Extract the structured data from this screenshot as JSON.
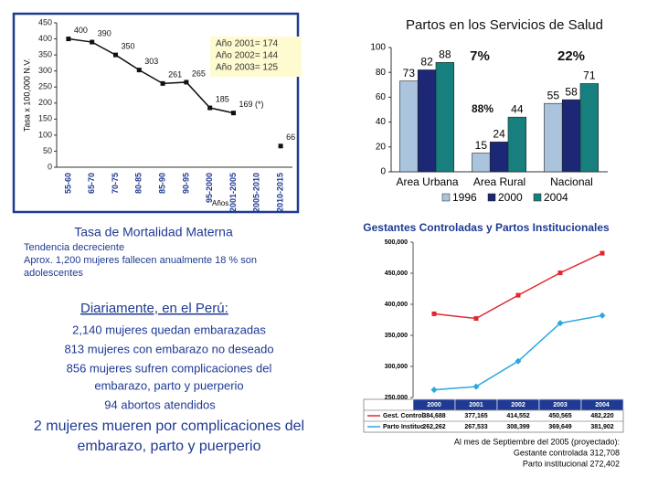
{
  "chart_data": [
    {
      "type": "line",
      "title": "Tasa de Mortalidad Materna",
      "y_label": "Tasa x 100,000 N.V.",
      "x_label": "Años",
      "categories": [
        "55-60",
        "65-70",
        "70-75",
        "80-85",
        "85-90",
        "90-95",
        "95-2000",
        "2001-2005",
        "2005-2010",
        "2010-2015"
      ],
      "values": [
        400,
        390,
        350,
        303,
        261,
        265,
        185,
        169,
        null,
        66
      ],
      "value_labels": [
        "400",
        "390",
        "350",
        "303",
        "261",
        "265",
        "185",
        "169 (*)",
        null,
        "66"
      ],
      "color": "#111111",
      "ylim": [
        0,
        450
      ],
      "yticks": [
        0,
        50,
        100,
        150,
        200,
        250,
        300,
        350,
        400,
        450
      ],
      "annotations": [
        "Año 2001= 174",
        "Año 2002= 144",
        "Año 2003= 125"
      ]
    },
    {
      "type": "bar",
      "title": "Partos en los Servicios de Salud",
      "categories": [
        "Area Urbana",
        "Area Rural",
        "Nacional"
      ],
      "series": [
        {
          "name": "1996",
          "color": "#a9c4dc",
          "values": [
            73,
            15,
            55
          ]
        },
        {
          "name": "2000",
          "color": "#1c2775",
          "values": [
            82,
            24,
            58
          ]
        },
        {
          "name": "2004",
          "color": "#17807e",
          "values": [
            88,
            44,
            71
          ]
        }
      ],
      "ylim": [
        0,
        100
      ],
      "yticks": [
        0,
        20,
        40,
        60,
        80,
        100
      ],
      "annotations": [
        "7%",
        "88%",
        "22%"
      ]
    },
    {
      "type": "line",
      "title": "Gestantes Controladas  y Partos Institucionales",
      "categories": [
        "2000",
        "2001",
        "2002",
        "2003",
        "2004"
      ],
      "series": [
        {
          "name": "Gest. Control.",
          "color": "#e0282e",
          "values": [
            384688,
            377165,
            414552,
            450565,
            482220
          ],
          "value_labels": [
            "384,688",
            "377,165",
            "414,552",
            "450,565",
            "482,220"
          ]
        },
        {
          "name": "Parto Instituc.",
          "color": "#2aa7e0",
          "values": [
            262262,
            267533,
            308399,
            369649,
            381902
          ],
          "value_labels": [
            "262,262",
            "267,533",
            "308,399",
            "369,649",
            "381,902"
          ]
        }
      ],
      "ylim": [
        250000,
        500000
      ],
      "yticks": [
        {
          "value": 250000,
          "label": "250,000"
        },
        {
          "value": 300000,
          "label": "300,000"
        },
        {
          "value": 350000,
          "label": "350,000"
        },
        {
          "value": 400000,
          "label": "400,000"
        },
        {
          "value": 450000,
          "label": "450,000"
        },
        {
          "value": 500000,
          "label": "500,000"
        }
      ],
      "notes": [
        "Al mes de Septiembre del 2005 (proyectado):",
        "Gestante controlada 312,708",
        "Parto institucional 272,402"
      ]
    }
  ],
  "text": {
    "trend": [
      "Tendencia decreciente",
      "Aprox. 1,200 mujeres fallecen anualmente 18 % son",
      "adolescentes"
    ],
    "heading": "Diariamente, en el Perú:",
    "lines": [
      "2,140 mujeres quedan embarazadas",
      "813  mujeres con embarazo no deseado",
      "856  mujeres sufren complicaciones del",
      "embarazo, parto y puerperio",
      "94  abortos atendidos"
    ],
    "big": [
      "2   mujeres mueren por complicaciones del",
      "embarazo, parto y puerperio"
    ]
  }
}
